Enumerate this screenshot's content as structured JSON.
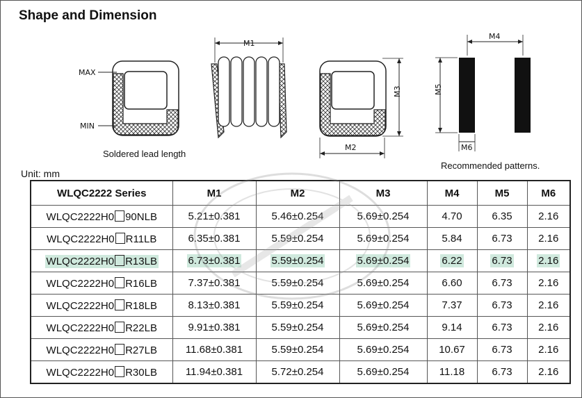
{
  "title": "Shape and Dimension",
  "diagram": {
    "label_max": "MAX",
    "label_min": "MIN",
    "caption_lead": "Soldered lead length",
    "caption_pattern": "Recommended patterns.",
    "dims": {
      "m1": "M1",
      "m2": "M2",
      "m3": "M3",
      "m4": "M4",
      "m5": "M5",
      "m6": "M6"
    }
  },
  "unit": "Unit: mm",
  "table": {
    "headers": [
      "WLQC2222 Series",
      "M1",
      "M2",
      "M3",
      "M4",
      "M5",
      "M6"
    ],
    "rows": [
      {
        "prefix": "WLQC2222H0",
        "suffix": "90NLB",
        "m1": "5.21±0.381",
        "m2": "5.46±0.254",
        "m3": "5.69±0.254",
        "m4": "4.70",
        "m5": "6.35",
        "m6": "2.16"
      },
      {
        "prefix": "WLQC2222H0",
        "suffix": "R11LB",
        "m1": "6.35±0.381",
        "m2": "5.59±0.254",
        "m3": "5.69±0.254",
        "m4": "5.84",
        "m5": "6.73",
        "m6": "2.16"
      },
      {
        "prefix": "WLQC2222H0",
        "suffix": "R13LB",
        "m1": "6.73±0.381",
        "m2": "5.59±0.254",
        "m3": "5.69±0.254",
        "m4": "6.22",
        "m5": "6.73",
        "m6": "2.16"
      },
      {
        "prefix": "WLQC2222H0",
        "suffix": "R16LB",
        "m1": "7.37±0.381",
        "m2": "5.59±0.254",
        "m3": "5.69±0.254",
        "m4": "6.60",
        "m5": "6.73",
        "m6": "2.16"
      },
      {
        "prefix": "WLQC2222H0",
        "suffix": "R18LB",
        "m1": "8.13±0.381",
        "m2": "5.59±0.254",
        "m3": "5.69±0.254",
        "m4": "7.37",
        "m5": "6.73",
        "m6": "2.16"
      },
      {
        "prefix": "WLQC2222H0",
        "suffix": "R22LB",
        "m1": "9.91±0.381",
        "m2": "5.59±0.254",
        "m3": "5.69±0.254",
        "m4": "9.14",
        "m5": "6.73",
        "m6": "2.16"
      },
      {
        "prefix": "WLQC2222H0",
        "suffix": "R27LB",
        "m1": "11.68±0.381",
        "m2": "5.59±0.254",
        "m3": "5.69±0.254",
        "m4": "10.67",
        "m5": "6.73",
        "m6": "2.16"
      },
      {
        "prefix": "WLQC2222H0",
        "suffix": "R30LB",
        "m1": "11.94±0.381",
        "m2": "5.72±0.254",
        "m3": "5.69±0.254",
        "m4": "11.18",
        "m5": "6.73",
        "m6": "2.16"
      }
    ]
  },
  "highlight_color": "#cfe9dd"
}
